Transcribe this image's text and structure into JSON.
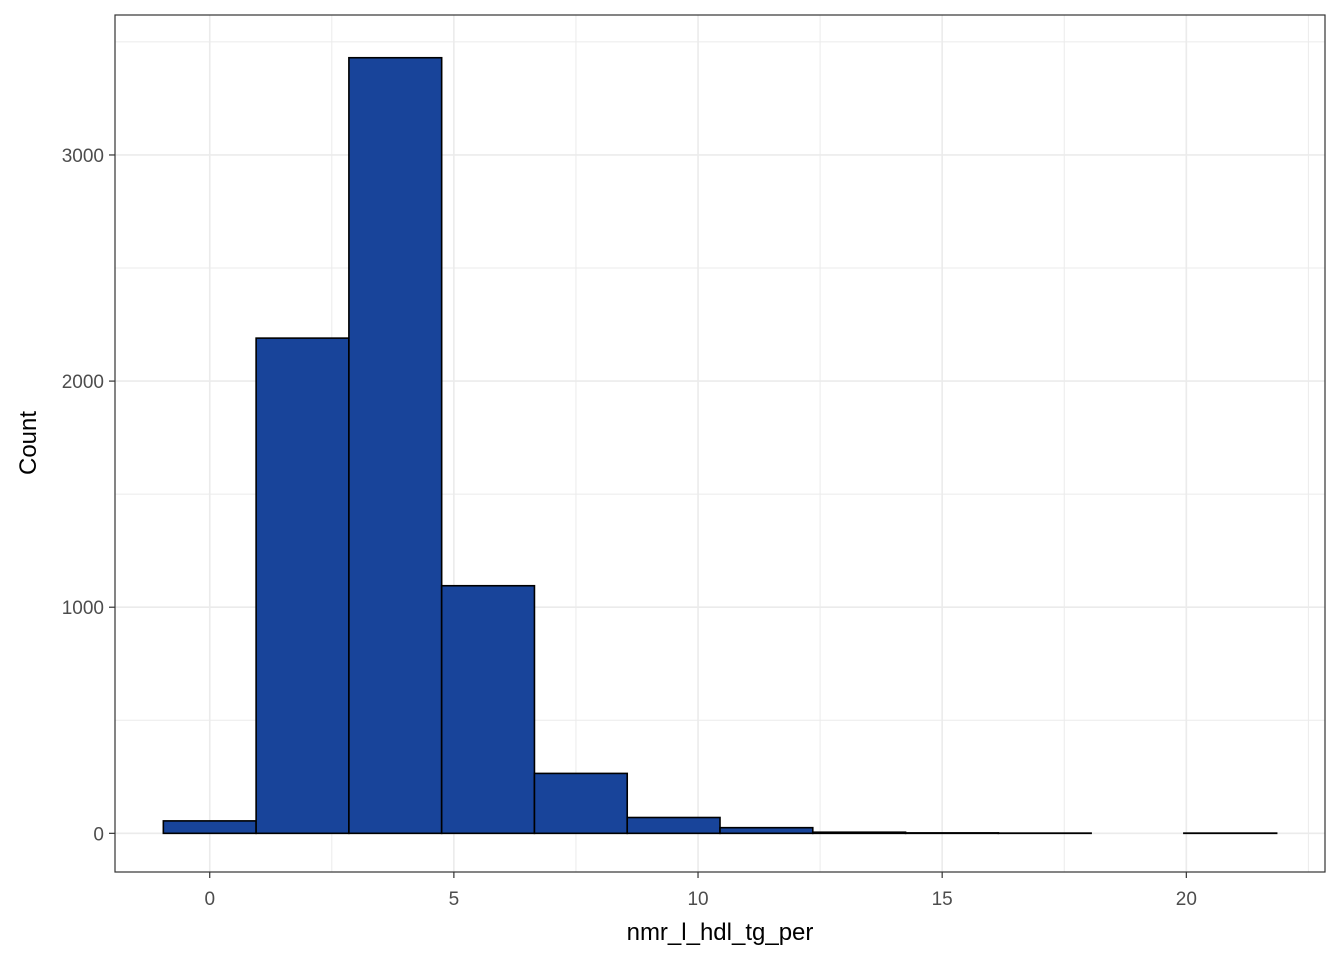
{
  "chart_data": {
    "type": "bar",
    "title": "",
    "xlabel": "nmr_l_hdl_tg_per",
    "ylabel": "Count",
    "xlim": [
      -1.94,
      22.84
    ],
    "ylim": [
      -171,
      3619
    ],
    "x_ticks": [
      0,
      5,
      10,
      15,
      20
    ],
    "x_tick_labels": [
      "0",
      "5",
      "10",
      "15",
      "20"
    ],
    "x_minor_ticks": [
      2.5,
      7.5,
      12.5,
      17.5,
      22.5
    ],
    "y_ticks": [
      0,
      1000,
      2000,
      3000
    ],
    "y_tick_labels": [
      "0",
      "1000",
      "2000",
      "3000"
    ],
    "y_minor_ticks": [
      500,
      1500,
      2500,
      3500
    ],
    "grid": true,
    "colors": {
      "fill": "#18449A",
      "outline": "#000000",
      "grid": "#EBEBEB",
      "panel_border": "#333333",
      "background": "#FFFFFF"
    },
    "bins": [
      {
        "x0": -0.95,
        "x1": 0.95,
        "count": 55
      },
      {
        "x0": 0.95,
        "x1": 2.85,
        "count": 2190
      },
      {
        "x0": 2.85,
        "x1": 4.75,
        "count": 3430
      },
      {
        "x0": 4.75,
        "x1": 6.65,
        "count": 1095
      },
      {
        "x0": 6.65,
        "x1": 8.55,
        "count": 265
      },
      {
        "x0": 8.55,
        "x1": 10.45,
        "count": 70
      },
      {
        "x0": 10.45,
        "x1": 12.35,
        "count": 25
      },
      {
        "x0": 12.35,
        "x1": 14.25,
        "count": 5
      },
      {
        "x0": 14.25,
        "x1": 16.15,
        "count": 2
      },
      {
        "x0": 16.15,
        "x1": 18.05,
        "count": 1
      },
      {
        "x0": 18.05,
        "x1": 19.95,
        "count": 0
      },
      {
        "x0": 19.95,
        "x1": 21.85,
        "count": 1
      }
    ]
  }
}
